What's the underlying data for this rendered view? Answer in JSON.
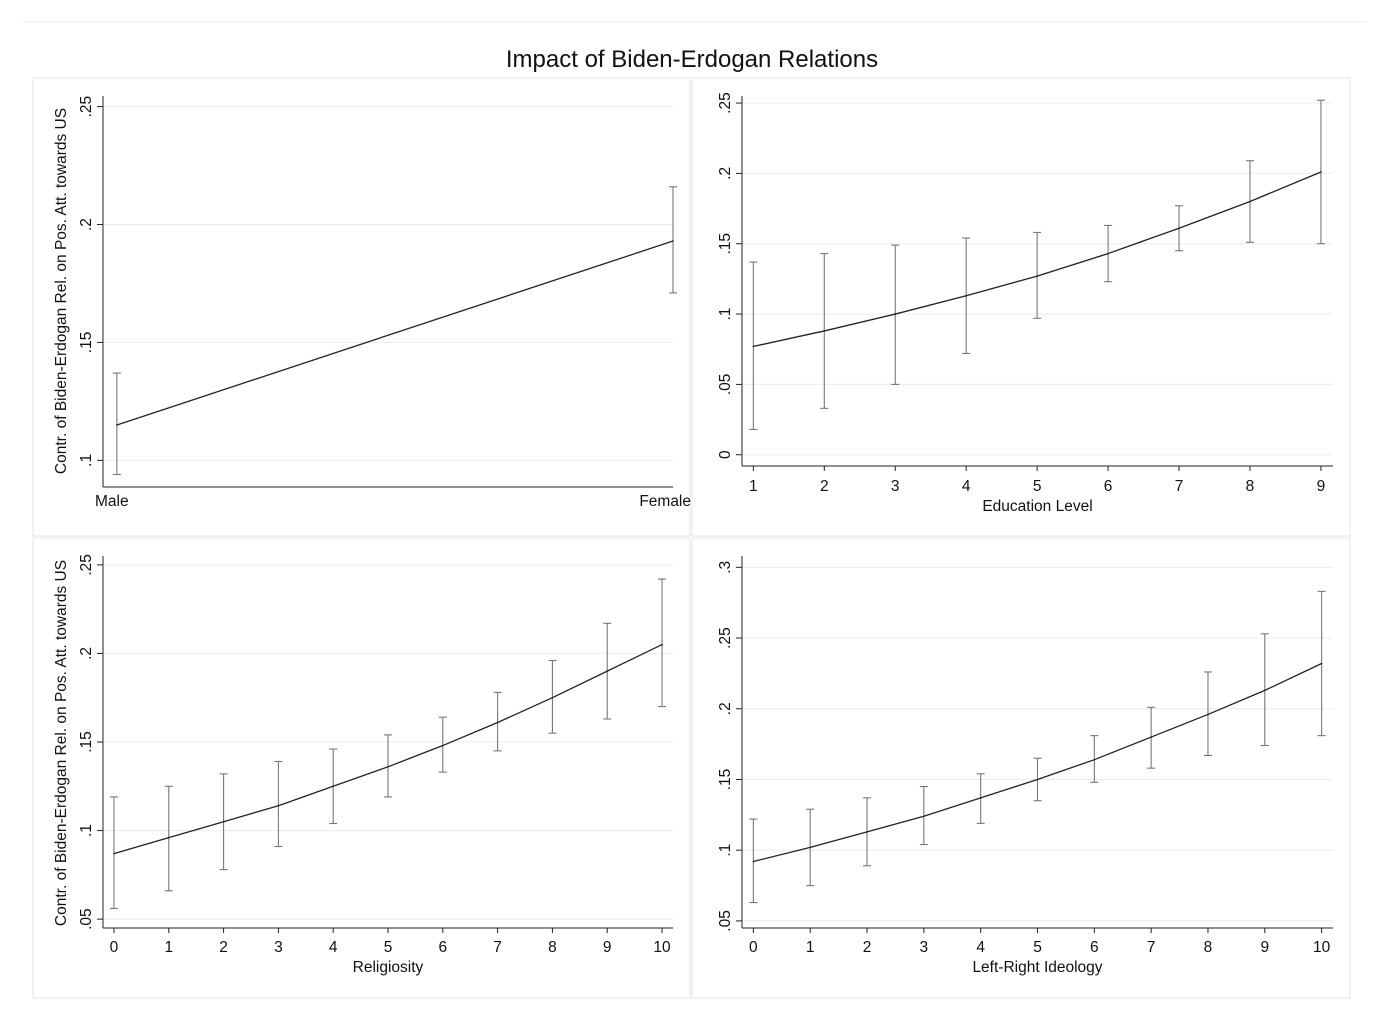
{
  "figure_title": "Impact of Biden-Erdogan Relations",
  "y_axis_title": "Contr. of Biden-Erdogan Rel. on Pos. Att. towards US",
  "colors": {
    "line": "#222222",
    "errorbar": "#777777",
    "grid": "#ececec",
    "axis": "#222222",
    "panel_border": "#e6e6e6"
  },
  "chart_data": [
    {
      "type": "line",
      "title": "",
      "xlabel": "",
      "ylabel": "Contr. of Biden-Erdogan Rel. on Pos. Att. towards US",
      "x": [
        0,
        1
      ],
      "x_tick_labels": [
        "Male",
        "Female"
      ],
      "y": [
        0.115,
        0.193
      ],
      "ci_low": [
        0.094,
        0.171
      ],
      "ci_high": [
        0.137,
        0.216
      ],
      "y_ticks": [
        0.1,
        0.15,
        0.2,
        0.25
      ],
      "y_tick_labels": [
        ".1",
        ".15",
        ".2",
        ".25"
      ],
      "grid": true
    },
    {
      "type": "line",
      "title": "",
      "xlabel": "Education Level",
      "ylabel": "",
      "x": [
        1,
        2,
        3,
        4,
        5,
        6,
        7,
        8,
        9
      ],
      "x_tick_labels": [
        "1",
        "2",
        "3",
        "4",
        "5",
        "6",
        "7",
        "8",
        "9"
      ],
      "y": [
        0.077,
        0.088,
        0.1,
        0.113,
        0.127,
        0.143,
        0.161,
        0.18,
        0.201
      ],
      "ci_low": [
        0.018,
        0.033,
        0.05,
        0.072,
        0.097,
        0.123,
        0.145,
        0.151,
        0.15
      ],
      "ci_high": [
        0.137,
        0.143,
        0.149,
        0.154,
        0.158,
        0.163,
        0.177,
        0.209,
        0.252
      ],
      "y_ticks": [
        0,
        0.05,
        0.1,
        0.15,
        0.2,
        0.25
      ],
      "y_tick_labels": [
        "0",
        ".05",
        ".1",
        ".15",
        ".2",
        ".25"
      ],
      "grid": true
    },
    {
      "type": "line",
      "title": "",
      "xlabel": "Religiosity",
      "ylabel": "Contr. of Biden-Erdogan Rel. on Pos. Att. towards US",
      "x": [
        0,
        1,
        2,
        3,
        4,
        5,
        6,
        7,
        8,
        9,
        10
      ],
      "x_tick_labels": [
        "0",
        "1",
        "2",
        "3",
        "4",
        "5",
        "6",
        "7",
        "8",
        "9",
        "10"
      ],
      "y": [
        0.087,
        0.096,
        0.105,
        0.114,
        0.125,
        0.136,
        0.148,
        0.161,
        0.175,
        0.19,
        0.205
      ],
      "ci_low": [
        0.056,
        0.066,
        0.078,
        0.091,
        0.104,
        0.119,
        0.133,
        0.145,
        0.155,
        0.163,
        0.17
      ],
      "ci_high": [
        0.119,
        0.125,
        0.132,
        0.139,
        0.146,
        0.154,
        0.164,
        0.178,
        0.196,
        0.217,
        0.242
      ],
      "y_ticks": [
        0.05,
        0.1,
        0.15,
        0.2,
        0.25
      ],
      "y_tick_labels": [
        ".05",
        ".1",
        ".15",
        ".2",
        ".25"
      ],
      "grid": true
    },
    {
      "type": "line",
      "title": "",
      "xlabel": "Left-Right Ideology",
      "ylabel": "",
      "x": [
        0,
        1,
        2,
        3,
        4,
        5,
        6,
        7,
        8,
        9,
        10
      ],
      "x_tick_labels": [
        "0",
        "1",
        "2",
        "3",
        "4",
        "5",
        "6",
        "7",
        "8",
        "9",
        "10"
      ],
      "y": [
        0.092,
        0.102,
        0.113,
        0.124,
        0.137,
        0.15,
        0.164,
        0.18,
        0.196,
        0.213,
        0.232
      ],
      "ci_low": [
        0.063,
        0.075,
        0.089,
        0.104,
        0.119,
        0.135,
        0.148,
        0.158,
        0.167,
        0.174,
        0.181
      ],
      "ci_high": [
        0.122,
        0.129,
        0.137,
        0.145,
        0.154,
        0.165,
        0.181,
        0.201,
        0.226,
        0.253,
        0.283
      ],
      "y_ticks": [
        0.05,
        0.1,
        0.15,
        0.2,
        0.25,
        0.3
      ],
      "y_tick_labels": [
        ".05",
        ".1",
        ".15",
        ".2",
        ".25",
        ".3"
      ],
      "grid": true
    }
  ]
}
